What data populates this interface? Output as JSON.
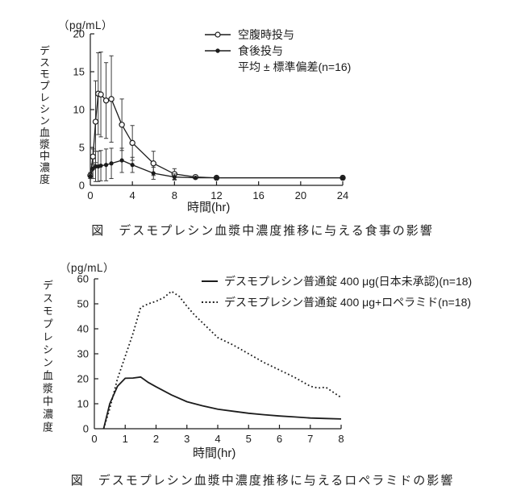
{
  "page": {
    "background": "#ffffff",
    "ink_color": "#1c1c1c"
  },
  "figures": [
    {
      "y_units": "（pg/mL）",
      "y_axis_label": "デスモプレシン血漿中濃度",
      "x_axis_label": "時間(hr)",
      "caption": "図　デスモプレシン血漿中濃度推移に与える食事の影響",
      "legend": [
        {
          "label": "空腹時投与",
          "marker": "open-circle-line"
        },
        {
          "label": "食後投与",
          "marker": "filled-circle-line"
        },
        {
          "label": "平均 ± 標準偏差(n=16)",
          "marker": "none"
        }
      ]
    },
    {
      "y_units": "（pg/mL）",
      "y_axis_label": "デスモプレシン血漿中濃度",
      "x_axis_label": "時間(hr)",
      "caption": "図　デスモプレシン血漿中濃度推移に与えるロペラミドの影響",
      "legend": [
        {
          "label": "デスモプレシン普通錠 400 μg(日本未承認)(n=18)",
          "marker": "solid-line"
        },
        {
          "label": "デスモプレシン普通錠 400 μg+ロペラミド(n=18)",
          "marker": "dotted-line"
        }
      ]
    }
  ],
  "chart_data": [
    {
      "type": "line",
      "title": "デスモプレシン血漿中濃度推移に与える食事の影響",
      "xlabel": "時間(hr)",
      "ylabel": "デスモプレシン血漿中濃度 (pg/mL)",
      "xlim": [
        0,
        24
      ],
      "ylim": [
        0,
        20
      ],
      "x_ticks": [
        0,
        4,
        8,
        12,
        16,
        20,
        24
      ],
      "y_ticks": [
        0,
        5,
        10,
        15,
        20
      ],
      "error_bars": "平均 ± 標準偏差(n=16)",
      "series": [
        {
          "name": "空腹時投与",
          "key": "fasting",
          "marker": "open-circle",
          "line": "solid",
          "x": [
            0,
            0.25,
            0.5,
            0.75,
            1,
            1.5,
            2,
            3,
            4,
            6,
            8,
            10,
            12,
            24
          ],
          "y": [
            1.3,
            3.8,
            8.4,
            12.1,
            12.0,
            11.2,
            11.4,
            8.0,
            5.6,
            2.9,
            1.5,
            1.1,
            1.0,
            1.0
          ],
          "sd": [
            0.4,
            1.0,
            5.4,
            5.4,
            5.6,
            5.0,
            5.7,
            3.4,
            2.3,
            1.6,
            0.7,
            0,
            0,
            0
          ]
        },
        {
          "name": "食後投与",
          "key": "fed",
          "marker": "filled-circle",
          "line": "solid",
          "x": [
            0,
            0.25,
            0.5,
            0.75,
            1,
            1.5,
            2,
            3,
            4,
            6,
            8,
            10,
            12,
            24
          ],
          "y": [
            1.2,
            2.2,
            2.5,
            2.5,
            2.6,
            2.7,
            2.9,
            3.3,
            2.7,
            1.6,
            1.1,
            1.0,
            1.0,
            1.0
          ],
          "sd": [
            0.3,
            1.3,
            2.0,
            2.0,
            2.0,
            2.1,
            2.0,
            1.6,
            1.0,
            0.8,
            0.4,
            0,
            0,
            0
          ]
        }
      ]
    },
    {
      "type": "line",
      "title": "デスモプレシン血漿中濃度推移に与えるロペラミドの影響",
      "xlabel": "時間(hr)",
      "ylabel": "デスモプレシン血漿中濃度 (pg/mL)",
      "xlim": [
        0,
        8
      ],
      "ylim": [
        0,
        60
      ],
      "x_ticks": [
        0,
        1,
        2,
        3,
        4,
        5,
        6,
        7,
        8
      ],
      "y_ticks": [
        0,
        10,
        20,
        30,
        40,
        50,
        60
      ],
      "series": [
        {
          "name": "デスモプレシン普通錠 400 μg(日本未承認)(n=18)",
          "key": "tablet-400",
          "marker": "none",
          "line": "solid",
          "x": [
            0.3,
            0.5,
            0.75,
            1,
            1.25,
            1.5,
            1.75,
            2,
            2.5,
            3,
            3.5,
            4,
            4.5,
            5,
            5.5,
            6,
            6.5,
            7,
            7.5,
            8
          ],
          "y": [
            0,
            10,
            17,
            20.2,
            20.3,
            20.7,
            18.5,
            16.8,
            13.5,
            10.8,
            9.2,
            7.8,
            7.0,
            6.2,
            5.6,
            5.1,
            4.7,
            4.3,
            4.1,
            3.9
          ]
        },
        {
          "name": "デスモプレシン普通錠 400 μg+ロペラミド(n=18)",
          "key": "tablet-400-loperamide",
          "marker": "none",
          "line": "dotted",
          "x": [
            0.3,
            0.5,
            0.75,
            1,
            1.25,
            1.5,
            1.75,
            2,
            2.25,
            2.5,
            2.75,
            3,
            3.25,
            3.5,
            4,
            4.5,
            5,
            5.5,
            6,
            6.5,
            7,
            7.25,
            7.5,
            8
          ],
          "y": [
            0,
            8,
            20,
            29,
            38,
            48.5,
            50,
            51,
            52.5,
            55,
            53,
            49,
            45.5,
            42.5,
            36.5,
            33.5,
            30,
            26.5,
            23.5,
            20.5,
            17,
            16.3,
            16.6,
            12.5
          ]
        }
      ]
    }
  ]
}
